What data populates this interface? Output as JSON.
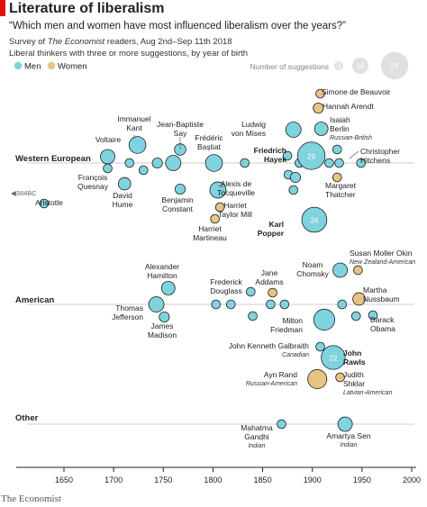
{
  "header": {
    "title": "Literature of liberalism",
    "subtitle": "“Which men and women have most influenced liberalism over the years?”",
    "survey_before": "Survey of ",
    "survey_italic": "The Economist",
    "survey_after": " readers, Aug 2nd–Sep 11th 2018",
    "note": "Liberal thinkers with three or more suggestions, by year of birth"
  },
  "footer": {
    "source": "The Economist"
  },
  "colors": {
    "men": "#7fd3df",
    "women": "#e5c485",
    "axis": "#222222",
    "rowline": "#bbbbbb",
    "legend_circle": "#e0e0e0",
    "legend_text": "#7a8a96"
  },
  "legend": {
    "men_label": "Men",
    "women_label": "Women",
    "size_title": "Number of suggestions",
    "size_values": [
      3,
      10,
      29
    ]
  },
  "chart_data": {
    "type": "scatter",
    "title": "Literature of liberalism",
    "x_axis": {
      "label": "",
      "range": [
        1620,
        2000
      ],
      "ticks": [
        1650,
        1700,
        1750,
        1800,
        1850,
        1900,
        1950,
        2000
      ]
    },
    "y_categories": [
      "Western European",
      "American",
      "Other"
    ],
    "size_label": "Number of suggestions",
    "offscale_marker": "◀384BC",
    "series": [
      {
        "group": "Western European",
        "people": [
          {
            "name": "Aristotle",
            "year": 1630,
            "dy": 45,
            "suggestions": 3,
            "gender": "man"
          },
          {
            "name": "Voltaire",
            "year": 1694,
            "dy": -7,
            "suggestions": 8,
            "gender": "man"
          },
          {
            "name": "François Quesnay",
            "year": 1694,
            "dy": 6,
            "suggestions": 3,
            "gender": "man"
          },
          {
            "name": "David Hume",
            "year": 1711,
            "dy": 23,
            "suggestions": 6,
            "gender": "man"
          },
          {
            "name": "Immanuel Kant",
            "year": 1724,
            "dy": -20,
            "suggestions": 11,
            "gender": "man"
          },
          {
            "name": "",
            "year": 1716,
            "dy": 0,
            "suggestions": 3,
            "gender": "man"
          },
          {
            "name": "",
            "year": 1730,
            "dy": 8,
            "suggestions": 3,
            "gender": "man"
          },
          {
            "name": "",
            "year": 1744,
            "dy": 0,
            "suggestions": 4,
            "gender": "man"
          },
          {
            "name": "Jean-Baptiste Say",
            "year": 1767,
            "dy": -15,
            "suggestions": 5,
            "gender": "man"
          },
          {
            "name": "",
            "year": 1760,
            "dy": 0,
            "suggestions": 9,
            "gender": "man"
          },
          {
            "name": "Benjamin Constant",
            "year": 1767,
            "dy": 29,
            "suggestions": 4,
            "gender": "man"
          },
          {
            "name": "Frédéric Bastiat",
            "year": 1801,
            "dy": 0,
            "suggestions": 11,
            "gender": "man"
          },
          {
            "name": "Alexis de Tocqueville",
            "year": 1805,
            "dy": 30,
            "suggestions": 10,
            "gender": "man"
          },
          {
            "name": "Harriet Taylor Mill",
            "year": 1807,
            "dy": 49,
            "suggestions": 3,
            "gender": "woman"
          },
          {
            "name": "Harriet Martineau",
            "year": 1802,
            "dy": 62,
            "suggestions": 3,
            "gender": "woman"
          },
          {
            "name": "",
            "year": 1832,
            "dy": 0,
            "suggestions": 3,
            "gender": "man"
          },
          {
            "name": "Ludwig von Mises",
            "year": 1881,
            "dy": -37,
            "suggestions": 9,
            "gender": "man"
          },
          {
            "name": "",
            "year": 1875,
            "dy": -8,
            "suggestions": 3,
            "gender": "man"
          },
          {
            "name": "",
            "year": 1876,
            "dy": 13,
            "suggestions": 3,
            "gender": "man"
          },
          {
            "name": "",
            "year": 1881,
            "dy": 30,
            "suggestions": 3,
            "gender": "man"
          },
          {
            "name": "",
            "year": 1883,
            "dy": 16,
            "suggestions": 4,
            "gender": "man"
          },
          {
            "name": "",
            "year": 1887,
            "dy": 0,
            "suggestions": 3,
            "gender": "man"
          },
          {
            "name": "Friedrich Hayek",
            "year": 1899,
            "dy": -8,
            "suggestions": 29,
            "gender": "man"
          },
          {
            "name": "Simone de Beauvoir",
            "year": 1908,
            "dy": -77,
            "suggestions": 3,
            "gender": "woman"
          },
          {
            "name": "Hannah Arendt",
            "year": 1906,
            "dy": -61,
            "suggestions": 4,
            "gender": "woman"
          },
          {
            "name": "Isaiah Berlin",
            "year": 1909,
            "dy": -38,
            "suggestions": 7,
            "gender": "man"
          },
          {
            "name": "Karl Popper",
            "year": 1902,
            "dy": 63,
            "suggestions": 24,
            "gender": "man"
          },
          {
            "name": "",
            "year": 1917,
            "dy": 0,
            "suggestions": 3,
            "gender": "man"
          },
          {
            "name": "",
            "year": 1927,
            "dy": 0,
            "suggestions": 3,
            "gender": "man"
          },
          {
            "name": "",
            "year": 1925,
            "dy": -15,
            "suggestions": 3,
            "gender": "man"
          },
          {
            "name": "Margaret Thatcher",
            "year": 1925,
            "dy": 16,
            "suggestions": 3,
            "gender": "woman"
          },
          {
            "name": "Christopher Hitchens",
            "year": 1949,
            "dy": 0,
            "suggestions": 3,
            "gender": "man"
          }
        ]
      },
      {
        "group": "American",
        "people": [
          {
            "name": "Alexander Hamilton",
            "year": 1755,
            "dy": -18,
            "suggestions": 7,
            "gender": "man"
          },
          {
            "name": "Thomas Jefferson",
            "year": 1743,
            "dy": 0,
            "suggestions": 9,
            "gender": "man"
          },
          {
            "name": "James Madison",
            "year": 1751,
            "dy": 14,
            "suggestions": 4,
            "gender": "man"
          },
          {
            "name": "",
            "year": 1803,
            "dy": 0,
            "suggestions": 3,
            "gender": "man"
          },
          {
            "name": "Frederick Douglass",
            "year": 1818,
            "dy": 0,
            "suggestions": 3,
            "gender": "man"
          },
          {
            "name": "",
            "year": 1838,
            "dy": -14,
            "suggestions": 3,
            "gender": "man"
          },
          {
            "name": "",
            "year": 1840,
            "dy": 13,
            "suggestions": 3,
            "gender": "man"
          },
          {
            "name": "Jane Addams",
            "year": 1860,
            "dy": -13,
            "suggestions": 3,
            "gender": "woman"
          },
          {
            "name": "",
            "year": 1858,
            "dy": 0,
            "suggestions": 3,
            "gender": "man"
          },
          {
            "name": "",
            "year": 1872,
            "dy": 0,
            "suggestions": 3,
            "gender": "man"
          },
          {
            "name": "Milton Friedman",
            "year": 1912,
            "dy": 17,
            "suggestions": 17,
            "gender": "man"
          },
          {
            "name": "Noam Chomsky",
            "year": 1928,
            "dy": -38,
            "suggestions": 8,
            "gender": "man"
          },
          {
            "name": "Susan Moller Okin",
            "year": 1946,
            "dy": -38,
            "suggestions": 3,
            "gender": "woman"
          },
          {
            "name": "Martha Nussbaum",
            "year": 1947,
            "dy": -6,
            "suggestions": 6,
            "gender": "woman"
          },
          {
            "name": "Barack Obama",
            "year": 1961,
            "dy": 12,
            "suggestions": 3,
            "gender": "man"
          },
          {
            "name": "",
            "year": 1944,
            "dy": 13,
            "suggestions": 3,
            "gender": "man"
          },
          {
            "name": "",
            "year": 1930,
            "dy": 0,
            "suggestions": 3,
            "gender": "man"
          },
          {
            "name": "John Kenneth Galbraith",
            "year": 1908,
            "dy": 47,
            "suggestions": 3,
            "gender": "man"
          },
          {
            "name": "John Rawls",
            "year": 1921,
            "dy": 59,
            "suggestions": 22,
            "gender": "man"
          },
          {
            "name": "Ayn Rand",
            "year": 1905,
            "dy": 83,
            "suggestions": 14,
            "gender": "woman"
          },
          {
            "name": "Judith Shklar",
            "year": 1928,
            "dy": 81,
            "suggestions": 3,
            "gender": "woman"
          }
        ]
      },
      {
        "group": "Other",
        "people": [
          {
            "name": "Mahatma Gandhi",
            "year": 1869,
            "dy": 0,
            "suggestions": 3,
            "gender": "man"
          },
          {
            "name": "Amartya Sen",
            "year": 1933,
            "dy": 0,
            "suggestions": 8,
            "gender": "man"
          }
        ]
      }
    ],
    "labels": [
      {
        "id": "voltaire",
        "lines": [
          "Voltaire"
        ]
      },
      {
        "id": "quesnay",
        "lines": [
          "François",
          "Quesnay"
        ]
      },
      {
        "id": "hume",
        "lines": [
          "David",
          "Hume"
        ]
      },
      {
        "id": "kant",
        "lines": [
          "Immanuel",
          "Kant"
        ]
      },
      {
        "id": "say",
        "lines": [
          "Jean-Baptiste",
          "Say"
        ]
      },
      {
        "id": "constant",
        "lines": [
          "Benjamin",
          "Constant"
        ]
      },
      {
        "id": "bastiat",
        "lines": [
          "Frédéric",
          "Bastiat"
        ]
      },
      {
        "id": "tocqueville",
        "lines": [
          "Alexis de",
          "Tocqueville"
        ]
      },
      {
        "id": "taylormill",
        "lines": [
          "Harriet",
          "Taylor Mill"
        ]
      },
      {
        "id": "martineau",
        "lines": [
          "Harriet",
          "Martineau"
        ]
      },
      {
        "id": "mises",
        "lines": [
          "Ludwig",
          "von Mises"
        ]
      },
      {
        "id": "hayek",
        "lines": [
          "Friedrich",
          "Hayek"
        ]
      },
      {
        "id": "beauvoir",
        "lines": [
          "Simone de Beauvoir"
        ]
      },
      {
        "id": "arendt",
        "lines": [
          "Hannah Arendt"
        ]
      },
      {
        "id": "berlin",
        "lines": [
          "Isaiah",
          "Berlin"
        ],
        "note": "Russian-British"
      },
      {
        "id": "popper",
        "lines": [
          "Karl",
          "Popper"
        ]
      },
      {
        "id": "thatcher",
        "lines": [
          "Margaret",
          "Thatcher"
        ]
      },
      {
        "id": "hitchens",
        "lines": [
          "Christopher",
          "Hitchens"
        ]
      },
      {
        "id": "aristotle",
        "lines": [
          "Aristotle"
        ]
      },
      {
        "id": "hamilton",
        "lines": [
          "Alexander",
          "Hamilton"
        ]
      },
      {
        "id": "jefferson",
        "lines": [
          "Thomas",
          "Jefferson"
        ]
      },
      {
        "id": "madison",
        "lines": [
          "James",
          "Madison"
        ]
      },
      {
        "id": "douglass",
        "lines": [
          "Frederick",
          "Douglass"
        ]
      },
      {
        "id": "addams",
        "lines": [
          "Jane",
          "Addams"
        ]
      },
      {
        "id": "friedman",
        "lines": [
          "Milton",
          "Friedman"
        ]
      },
      {
        "id": "chomsky",
        "lines": [
          "Noam",
          "Chomsky"
        ]
      },
      {
        "id": "okin",
        "lines": [
          "Susan Moller Okin"
        ],
        "note": "New Zealand-American"
      },
      {
        "id": "nussbaum",
        "lines": [
          "Martha",
          "Nussbaum"
        ]
      },
      {
        "id": "obama",
        "lines": [
          "Barack",
          "Obama"
        ]
      },
      {
        "id": "galbraith",
        "lines": [
          "John Kenneth Galbraith"
        ],
        "note": "Canadian"
      },
      {
        "id": "rawls",
        "lines": [
          "John",
          "Rawls"
        ]
      },
      {
        "id": "rand",
        "lines": [
          "Ayn Rand"
        ],
        "note": "Russian-American"
      },
      {
        "id": "shklar",
        "lines": [
          "Judith",
          "Shklar"
        ],
        "note": "Latvian-American"
      },
      {
        "id": "gandhi",
        "lines": [
          "Mahatma",
          "Gandhi"
        ],
        "note": "Indian"
      },
      {
        "id": "sen",
        "lines": [
          "Amartya Sen"
        ],
        "note": "Indian"
      }
    ]
  }
}
